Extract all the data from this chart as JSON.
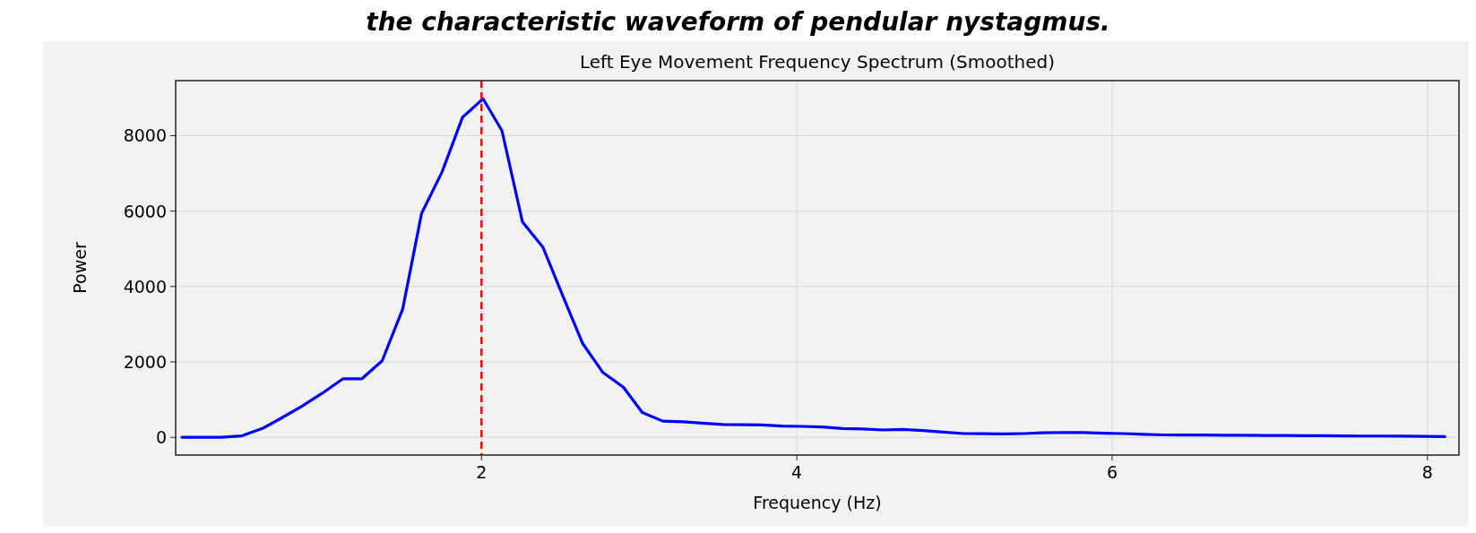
{
  "chart_data": {
    "type": "line",
    "title": "Left Eye Movement Frequency Spectrum (Smoothed)",
    "xlabel": "Frequency (Hz)",
    "ylabel": "Power",
    "annotations": [
      "the characteristic waveform of pendular nystagmus."
    ],
    "x": [
      0.1,
      0.23,
      0.35,
      0.48,
      0.61,
      0.73,
      0.86,
      0.99,
      1.12,
      1.24,
      1.37,
      1.5,
      1.62,
      1.75,
      1.88,
      2.01,
      2.13,
      2.26,
      2.39,
      2.52,
      2.64,
      2.77,
      2.9,
      3.02,
      3.15,
      3.28,
      3.4,
      3.53,
      3.66,
      3.78,
      3.91,
      4.04,
      4.16,
      4.29,
      4.42,
      4.55,
      4.67,
      4.8,
      4.93,
      5.06,
      5.18,
      5.31,
      5.44,
      5.56,
      5.69,
      5.82,
      5.95,
      6.07,
      6.2,
      6.33,
      6.45,
      6.58,
      6.71,
      6.83,
      6.96,
      7.09,
      7.22,
      7.34,
      7.47,
      7.6,
      7.72,
      7.85,
      7.98,
      8.11
    ],
    "series": [
      {
        "color": "#0000ff",
        "values": [
          0,
          0,
          0,
          40,
          235,
          510,
          820,
          1170,
          1550,
          1550,
          2030,
          3400,
          5940,
          7040,
          8490,
          8980,
          8130,
          5710,
          5040,
          3710,
          2500,
          1720,
          1330,
          660,
          430,
          410,
          375,
          340,
          335,
          330,
          300,
          290,
          275,
          235,
          220,
          195,
          210,
          180,
          140,
          100,
          95,
          90,
          100,
          120,
          130,
          125,
          110,
          100,
          80,
          65,
          60,
          60,
          55,
          55,
          50,
          50,
          45,
          45,
          40,
          35,
          35,
          30,
          25,
          20
        ]
      }
    ],
    "xlim": [
      0.06,
      8.2
    ],
    "xticks": [
      2,
      4,
      6,
      8
    ],
    "ylim": [
      -470,
      9460
    ],
    "yticks": [
      0,
      2000,
      4000,
      6000,
      8000
    ],
    "grid": true,
    "ref_lines": [
      {
        "axis": "x",
        "value": 2.0,
        "color": "#ff0000",
        "line_style": "dashed"
      }
    ]
  }
}
